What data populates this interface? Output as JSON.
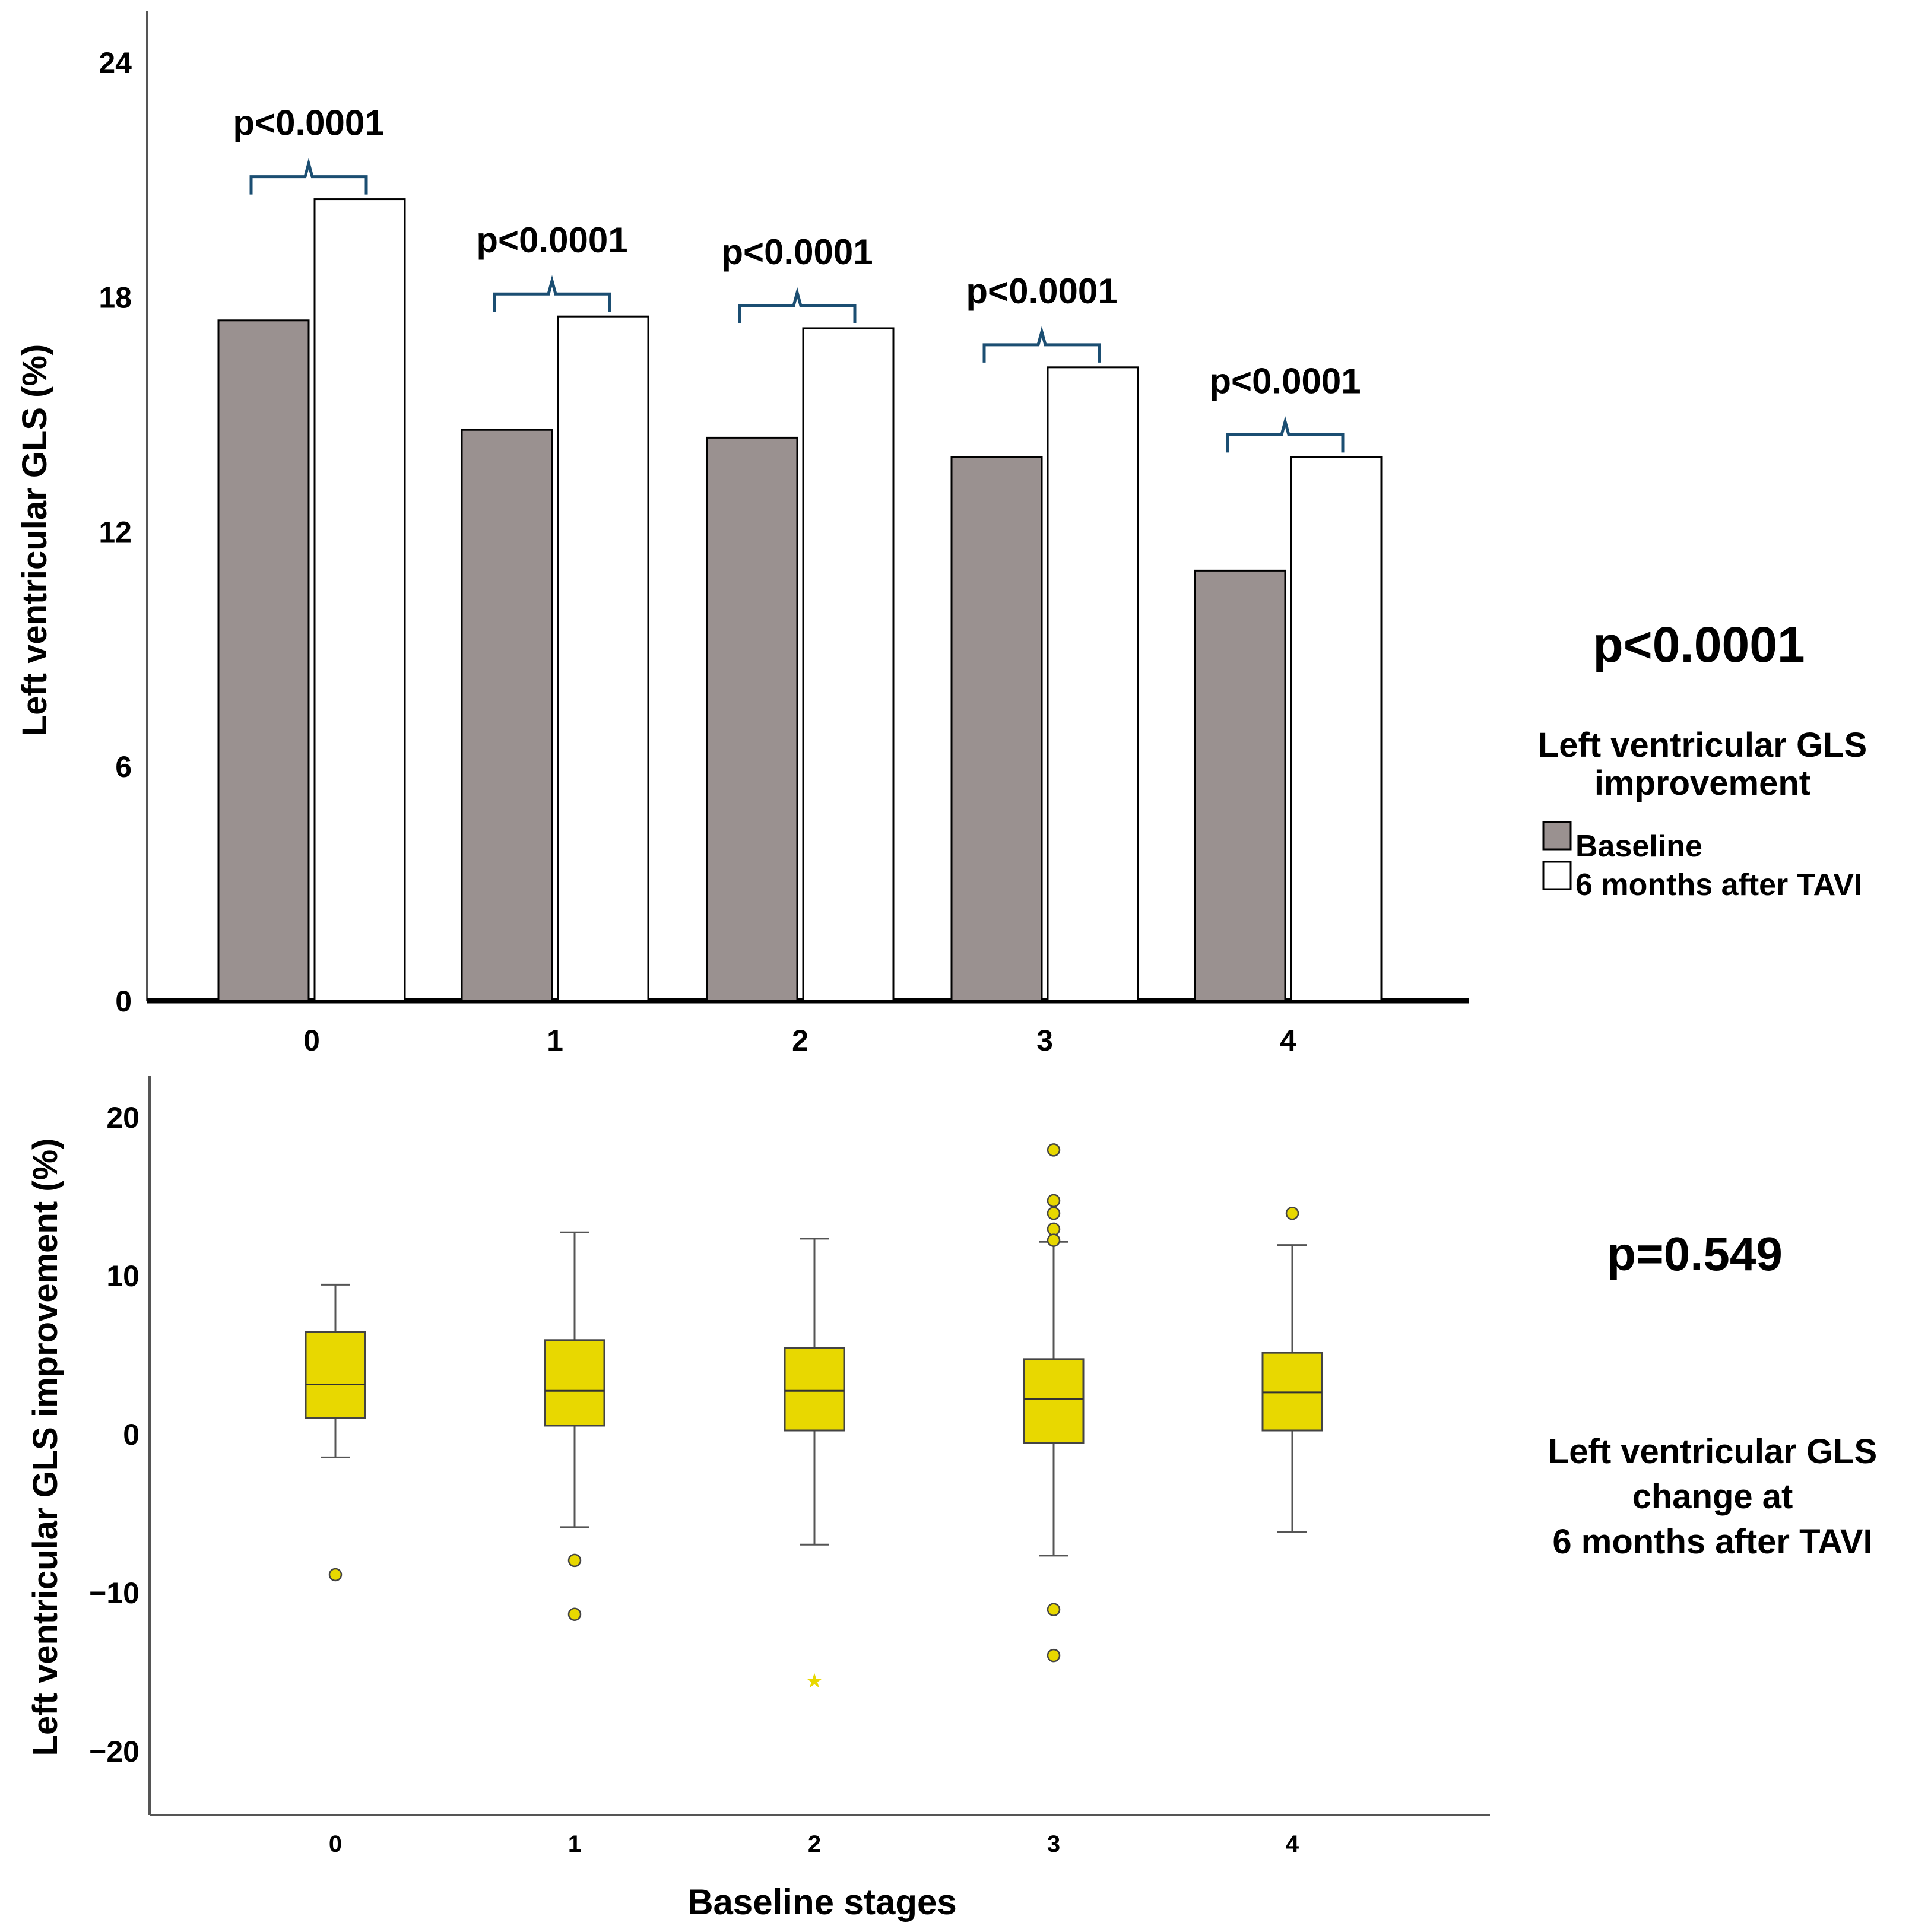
{
  "colors": {
    "baseline_bar": "#9a9190",
    "after_bar": "#ffffff",
    "box_fill": "#e8d800",
    "bracket": "#1b4e72",
    "overall_p_top": "#ff0000"
  },
  "chart_data": [
    {
      "type": "bar",
      "categories": [
        "0",
        "1",
        "2",
        "3",
        "4"
      ],
      "series": [
        {
          "name": "Baseline",
          "values": [
            17.4,
            14.6,
            14.4,
            13.9,
            11.0
          ]
        },
        {
          "name": "6 months after TAVI",
          "values": [
            20.5,
            17.5,
            17.2,
            16.2,
            13.9
          ]
        }
      ],
      "ylabel": "Left ventricular GLS (%)",
      "ylim": [
        0,
        24
      ],
      "yticks": [
        "0",
        "6",
        "12",
        "18",
        "24"
      ],
      "pair_pvalues": [
        "p<0.0001",
        "p<0.0001",
        "p<0.0001",
        "p<0.0001",
        "p<0.0001"
      ],
      "overall_p": "p<0.0001",
      "legend_title": "Left ventricular GLS improvement",
      "legend_position": "right",
      "grid": false
    },
    {
      "type": "box",
      "categories": [
        "0",
        "1",
        "2",
        "3",
        "4"
      ],
      "boxes": [
        {
          "q1": 1.1,
          "median": 3.2,
          "q3": 6.5,
          "whisker_low": -1.4,
          "whisker_high": 9.5,
          "outliers": [
            -8.8
          ]
        },
        {
          "q1": 0.6,
          "median": 2.8,
          "q3": 6.0,
          "whisker_low": -5.8,
          "whisker_high": 12.8,
          "outliers": [
            -7.9,
            -11.3
          ]
        },
        {
          "q1": 0.3,
          "median": 2.8,
          "q3": 5.5,
          "whisker_low": -6.9,
          "whisker_high": 12.4,
          "outliers": [
            -15.5
          ]
        },
        {
          "q1": -0.5,
          "median": 2.3,
          "q3": 4.8,
          "whisker_low": -7.6,
          "whisker_high": 12.2,
          "outliers": [
            18.0,
            14.8,
            14.0,
            13.0,
            12.3,
            -11.0,
            -13.9
          ]
        },
        {
          "q1": 0.3,
          "median": 2.7,
          "q3": 5.2,
          "whisker_low": -6.1,
          "whisker_high": 12.0,
          "outliers": [
            14.0
          ]
        }
      ],
      "xlabel": "Baseline stages",
      "ylabel": "Left ventricular GLS improvement  (%)",
      "ylim": [
        -23,
        23
      ],
      "yticks": [
        "20",
        "10",
        "0",
        "−10",
        "−20"
      ],
      "overall_p": "p=0.549",
      "side_label_lines": [
        "Left ventricular GLS",
        "change at",
        "6 months after TAVI"
      ],
      "grid": false
    }
  ]
}
